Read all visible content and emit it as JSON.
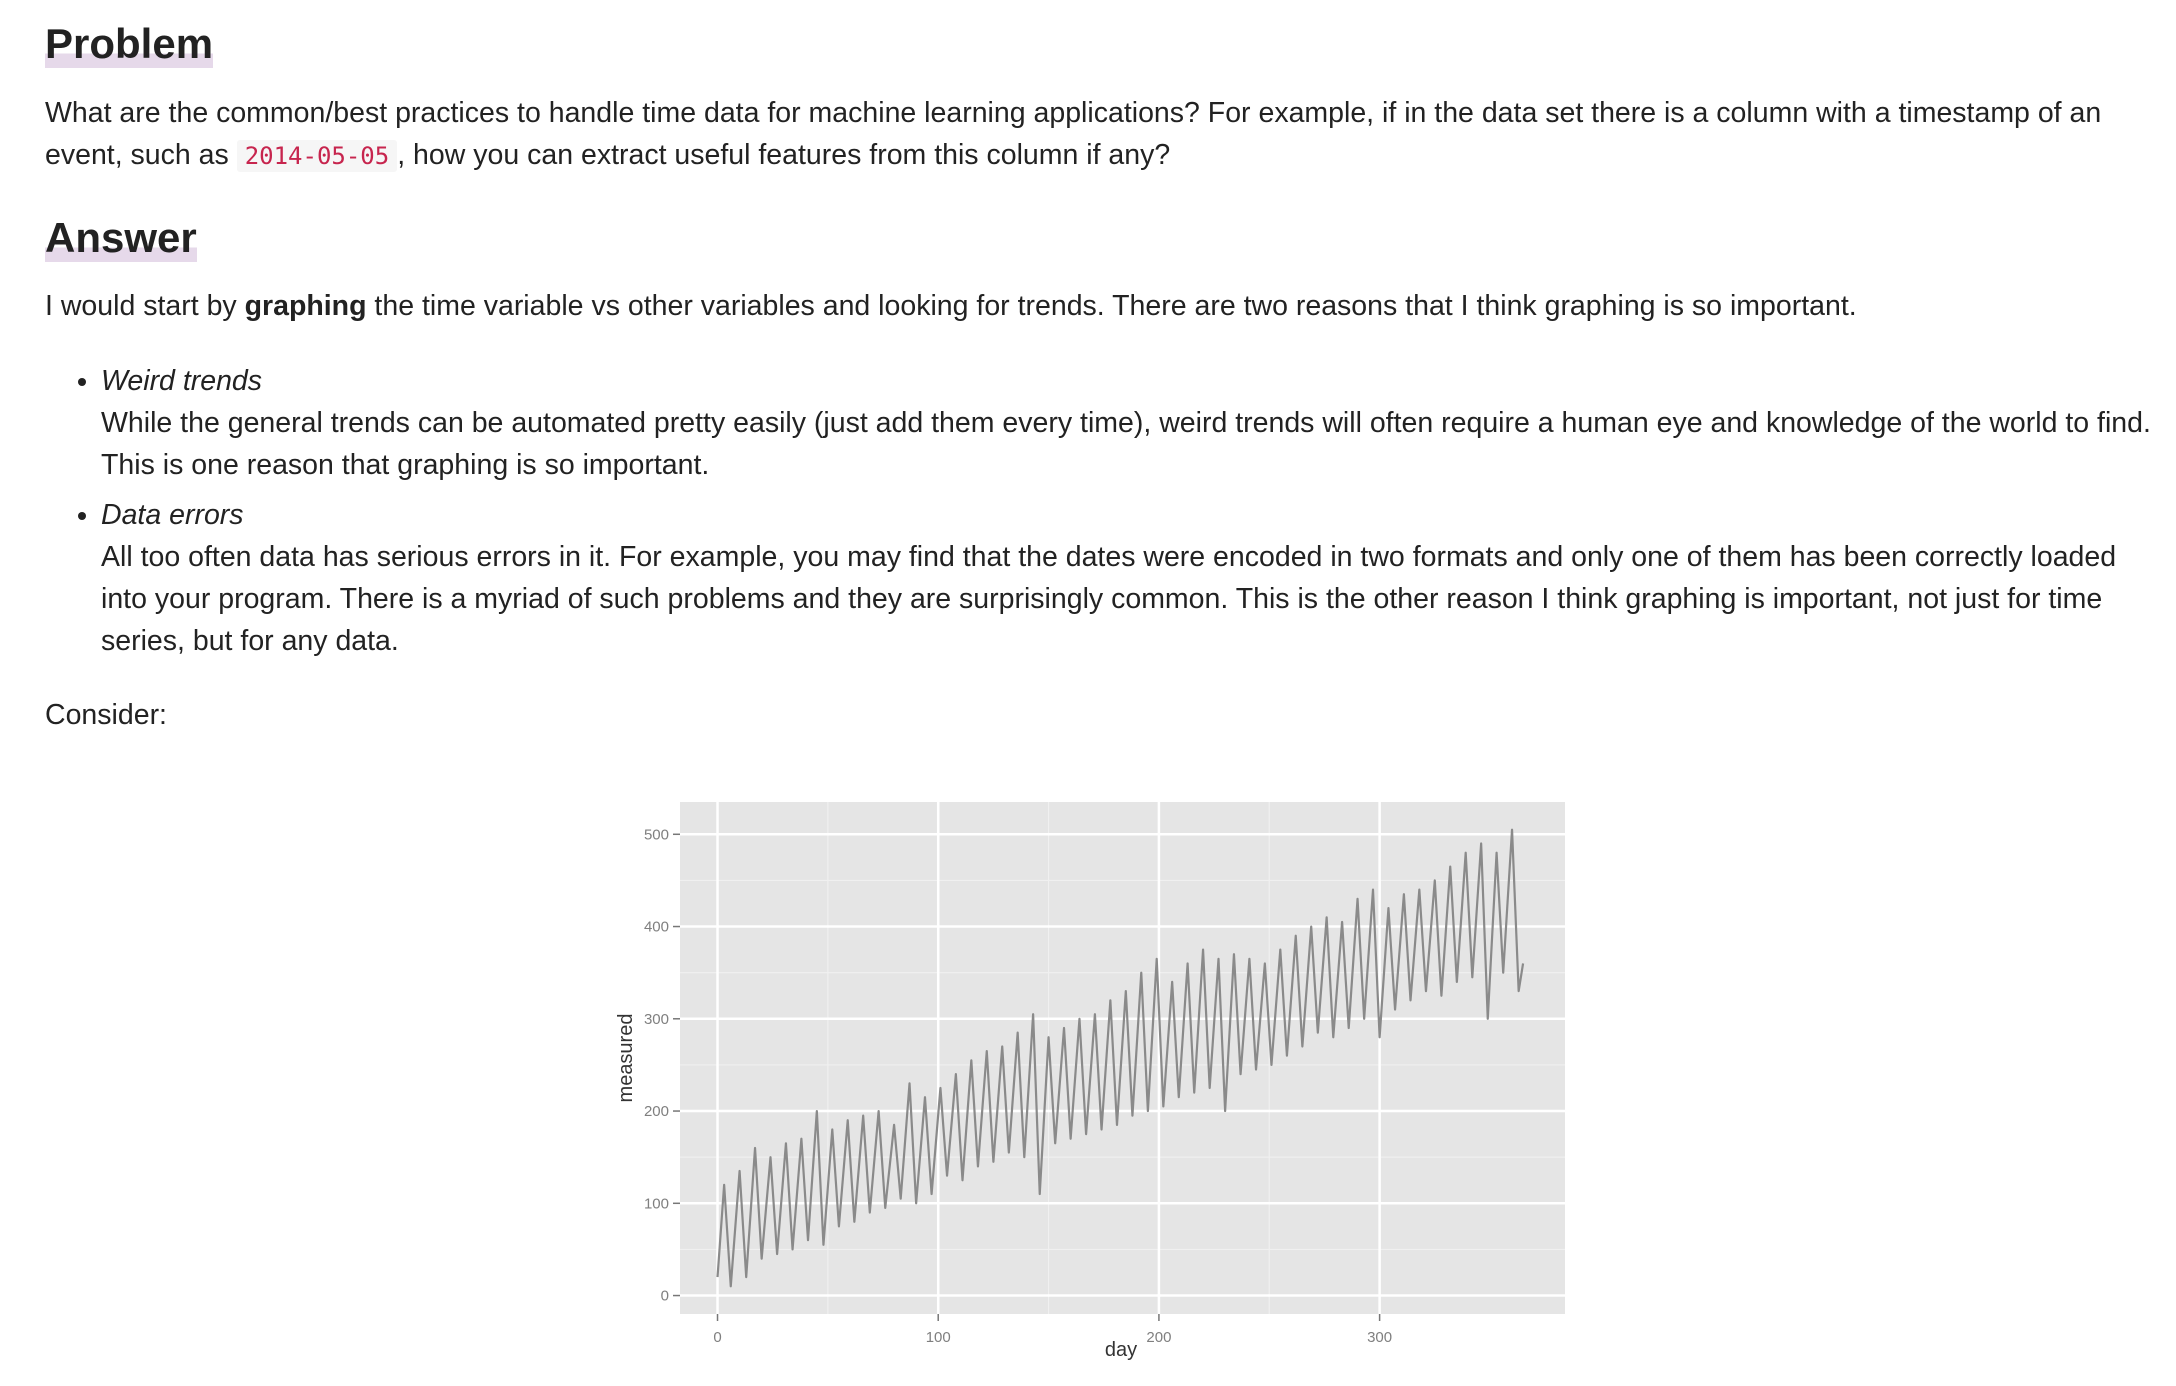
{
  "problem": {
    "heading": "Problem",
    "text_before": "What are the common/best practices to handle time data for machine learning applications? For example, if in the data set there is a column with a timestamp of an event, such as",
    "code": "2014-05-05",
    "text_after": ", how you can extract useful features from this column if any?"
  },
  "answer": {
    "heading": "Answer",
    "intro_before": "I would start by",
    "intro_bold": "graphing",
    "intro_after": "the time variable vs other variables and looking for trends. There are two reasons that I think graphing is so important.",
    "items": [
      {
        "title": "Weird trends",
        "body": "While the general trends can be automated pretty easily (just add them every time), weird trends will often require a human eye and knowledge of the world to find. This is one reason that graphing is so important."
      },
      {
        "title": "Data errors",
        "body": "All too often data has serious errors in it. For example, you may find that the dates were encoded in two formats and only one of them has been correctly loaded into your program. There is a myriad of such problems and they are surprisingly common. This is the other reason I think graphing is important, not just for time series, but for any data."
      }
    ],
    "consider": "Consider:"
  },
  "chart_data": {
    "type": "line",
    "xlabel": "day",
    "ylabel": "measured",
    "xlim": [
      -17,
      384
    ],
    "ylim": [
      -20,
      535
    ],
    "xticks": [
      0,
      100,
      200,
      300
    ],
    "yticks": [
      0,
      100,
      200,
      300,
      400,
      500
    ],
    "grid": true,
    "x": [
      0,
      3,
      6,
      10,
      13,
      17,
      20,
      24,
      27,
      31,
      34,
      38,
      41,
      45,
      48,
      52,
      55,
      59,
      62,
      66,
      69,
      73,
      76,
      80,
      83,
      87,
      90,
      94,
      97,
      101,
      104,
      108,
      111,
      115,
      118,
      122,
      125,
      129,
      132,
      136,
      139,
      143,
      146,
      150,
      153,
      157,
      160,
      164,
      167,
      171,
      174,
      178,
      181,
      185,
      188,
      192,
      195,
      199,
      202,
      206,
      209,
      213,
      216,
      220,
      223,
      227,
      230,
      234,
      237,
      241,
      244,
      248,
      251,
      255,
      258,
      262,
      265,
      269,
      272,
      276,
      279,
      283,
      286,
      290,
      293,
      297,
      300,
      304,
      307,
      311,
      314,
      318,
      321,
      325,
      328,
      332,
      335,
      339,
      342,
      346,
      349,
      353,
      356,
      360,
      363,
      365
    ],
    "series": [
      {
        "name": "measured",
        "color": "#8a8a8a",
        "values": [
          20,
          120,
          10,
          135,
          20,
          160,
          40,
          150,
          45,
          165,
          50,
          170,
          60,
          200,
          55,
          180,
          75,
          190,
          80,
          195,
          90,
          200,
          95,
          185,
          105,
          230,
          100,
          215,
          110,
          225,
          130,
          240,
          125,
          255,
          140,
          265,
          145,
          270,
          155,
          285,
          150,
          305,
          110,
          280,
          165,
          290,
          170,
          300,
          175,
          305,
          180,
          320,
          185,
          330,
          195,
          350,
          200,
          365,
          205,
          340,
          215,
          360,
          220,
          375,
          225,
          365,
          200,
          370,
          240,
          365,
          245,
          360,
          250,
          375,
          260,
          390,
          270,
          400,
          285,
          410,
          280,
          405,
          290,
          430,
          300,
          440,
          280,
          420,
          310,
          435,
          320,
          440,
          330,
          450,
          325,
          465,
          340,
          480,
          345,
          490,
          300,
          480,
          350,
          505,
          330,
          360
        ]
      }
    ]
  }
}
